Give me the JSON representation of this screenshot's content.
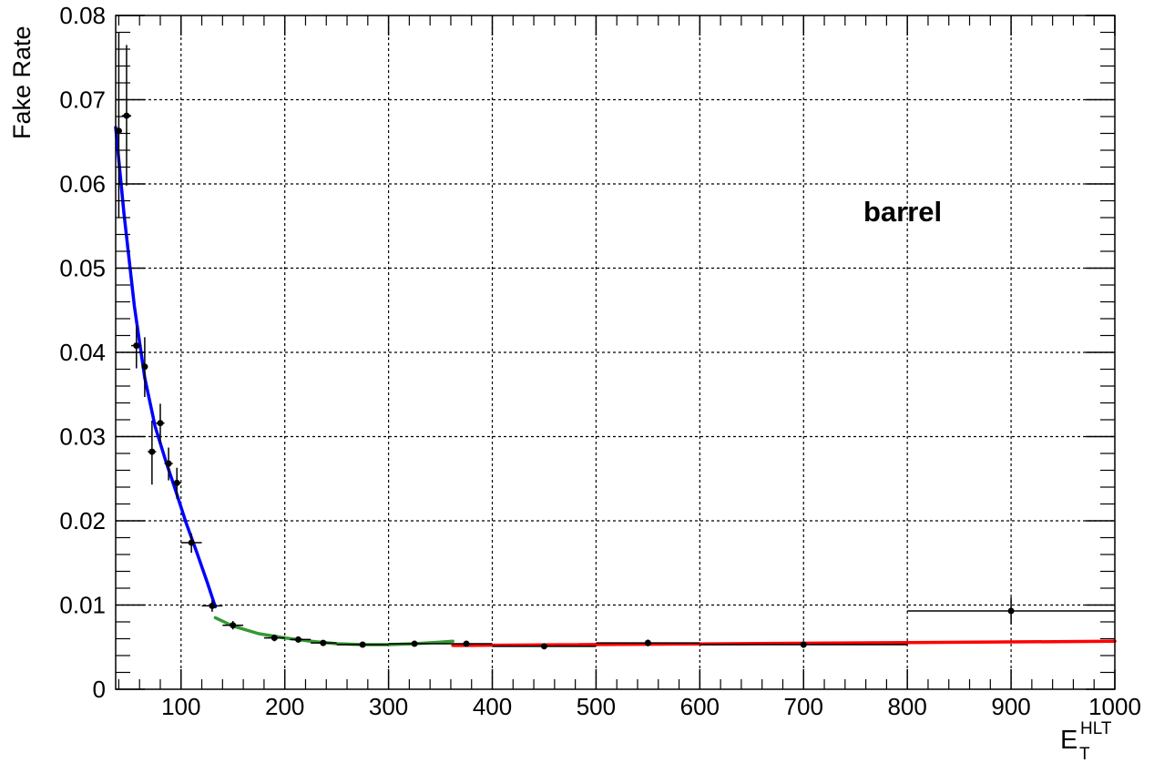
{
  "chart_data": {
    "type": "scatter",
    "title": "",
    "xlabel": "E",
    "xlabel_sub": "T",
    "xlabel_sup": "HLT",
    "ylabel": "Fake Rate",
    "annotation": "barrel",
    "xlim": [
      37,
      1000
    ],
    "ylim": [
      0,
      0.08
    ],
    "grid": true,
    "x_ticks": [
      100,
      200,
      300,
      400,
      500,
      600,
      700,
      800,
      900,
      1000
    ],
    "x_tick_labels": [
      "100",
      "200",
      "300",
      "400",
      "500",
      "600",
      "700",
      "800",
      "900",
      "1000"
    ],
    "y_ticks": [
      0,
      0.01,
      0.02,
      0.03,
      0.04,
      0.05,
      0.06,
      0.07,
      0.08
    ],
    "y_tick_labels": [
      "0",
      "0.01",
      "0.02",
      "0.03",
      "0.04",
      "0.05",
      "0.06",
      "0.07",
      "0.08"
    ],
    "points": [
      {
        "x": 40,
        "y": 0.0663,
        "xlo": 37,
        "xhi": 43,
        "ylo": 0.056,
        "yhi": 0.078
      },
      {
        "x": 47.5,
        "y": 0.0681,
        "xlo": 43,
        "xhi": 52,
        "ylo": 0.0598,
        "yhi": 0.0765
      },
      {
        "x": 57,
        "y": 0.0408,
        "xlo": 52,
        "xhi": 62,
        "ylo": 0.0381,
        "yhi": 0.0432
      },
      {
        "x": 65,
        "y": 0.0383,
        "xlo": 62,
        "xhi": 68,
        "ylo": 0.0347,
        "yhi": 0.0418
      },
      {
        "x": 72,
        "y": 0.0282,
        "xlo": 68,
        "xhi": 76,
        "ylo": 0.0243,
        "yhi": 0.0319
      },
      {
        "x": 80,
        "y": 0.0316,
        "xlo": 76,
        "xhi": 84,
        "ylo": 0.0292,
        "yhi": 0.0339
      },
      {
        "x": 88,
        "y": 0.0268,
        "xlo": 84,
        "xhi": 92,
        "ylo": 0.0248,
        "yhi": 0.0287
      },
      {
        "x": 96,
        "y": 0.0245,
        "xlo": 92,
        "xhi": 100,
        "ylo": 0.0226,
        "yhi": 0.0263
      },
      {
        "x": 110,
        "y": 0.0174,
        "xlo": 100,
        "xhi": 120,
        "ylo": 0.0162,
        "yhi": 0.0185
      },
      {
        "x": 130,
        "y": 0.0099,
        "xlo": 120,
        "xhi": 140,
        "ylo": 0.0092,
        "yhi": 0.0106
      },
      {
        "x": 150,
        "y": 0.0076,
        "xlo": 140,
        "xhi": 160,
        "ylo": 0.0071,
        "yhi": 0.0081
      },
      {
        "x": 190,
        "y": 0.0061,
        "xlo": 180,
        "xhi": 200,
        "ylo": 0.0057,
        "yhi": 0.0065
      },
      {
        "x": 213,
        "y": 0.0059,
        "xlo": 205,
        "xhi": 225,
        "ylo": 0.0056,
        "yhi": 0.0062
      },
      {
        "x": 237,
        "y": 0.0055,
        "xlo": 225,
        "xhi": 250,
        "ylo": 0.0052,
        "yhi": 0.0058
      },
      {
        "x": 275,
        "y": 0.0053,
        "xlo": 250,
        "xhi": 300,
        "ylo": 0.0051,
        "yhi": 0.0056
      },
      {
        "x": 325,
        "y": 0.0054,
        "xlo": 300,
        "xhi": 350,
        "ylo": 0.0051,
        "yhi": 0.0057
      },
      {
        "x": 375,
        "y": 0.0054,
        "xlo": 350,
        "xhi": 400,
        "ylo": 0.0051,
        "yhi": 0.0057
      },
      {
        "x": 450,
        "y": 0.0051,
        "xlo": 400,
        "xhi": 500,
        "ylo": 0.0048,
        "yhi": 0.0054
      },
      {
        "x": 550,
        "y": 0.0055,
        "xlo": 500,
        "xhi": 600,
        "ylo": 0.0051,
        "yhi": 0.0059
      },
      {
        "x": 700,
        "y": 0.0053,
        "xlo": 600,
        "xhi": 800,
        "ylo": 0.0049,
        "yhi": 0.0057
      },
      {
        "x": 900,
        "y": 0.0093,
        "xlo": 800,
        "xhi": 1000,
        "ylo": 0.0077,
        "yhi": 0.0109
      }
    ],
    "fits": [
      {
        "color": "#0000ff",
        "x": [
          37,
          45,
          55,
          65,
          75,
          85,
          95,
          105,
          115,
          125,
          133
        ],
        "y": [
          0.0667,
          0.0565,
          0.0455,
          0.037,
          0.0312,
          0.0272,
          0.0235,
          0.0197,
          0.0163,
          0.0128,
          0.0098
        ]
      },
      {
        "color": "#339933",
        "x": [
          133,
          150,
          175,
          200,
          225,
          250,
          275,
          300,
          325,
          350,
          362
        ],
        "y": [
          0.0085,
          0.0075,
          0.0066,
          0.0061,
          0.0057,
          0.0054,
          0.0053,
          0.0053,
          0.0054,
          0.0056,
          0.0057
        ]
      },
      {
        "color": "#ff0000",
        "x": [
          362,
          1000
        ],
        "y": [
          0.0052,
          0.0057
        ]
      }
    ]
  }
}
